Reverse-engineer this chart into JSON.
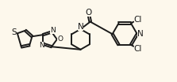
{
  "bg_color": "#fdf8ec",
  "line_color": "#1a1a1a",
  "line_width": 1.4,
  "font_size": 7.0,
  "figsize": [
    2.23,
    1.04
  ],
  "dpi": 100,
  "xlim": [
    0,
    10
  ],
  "ylim": [
    0,
    4.65
  ]
}
